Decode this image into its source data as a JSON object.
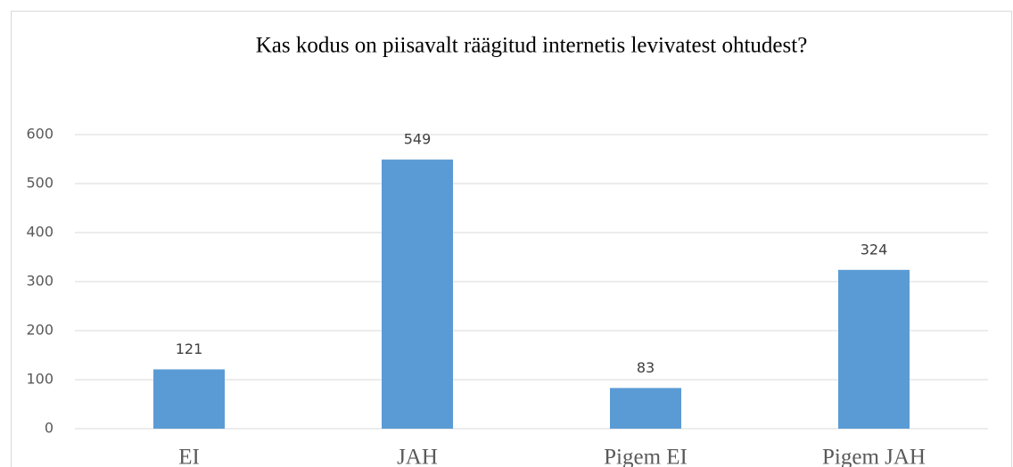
{
  "chart_data": {
    "type": "bar",
    "title": "Kas kodus on piisavalt räägitud internetis levivatest ohtudest?",
    "categories": [
      "EI",
      "JAH",
      "Pigem EI",
      "Pigem JAH"
    ],
    "values": [
      121,
      549,
      83,
      324
    ],
    "color": "#5b9bd5",
    "ylim": [
      0,
      600
    ],
    "yticks": [
      0,
      100,
      200,
      300,
      400,
      500,
      600
    ],
    "grid": true
  }
}
